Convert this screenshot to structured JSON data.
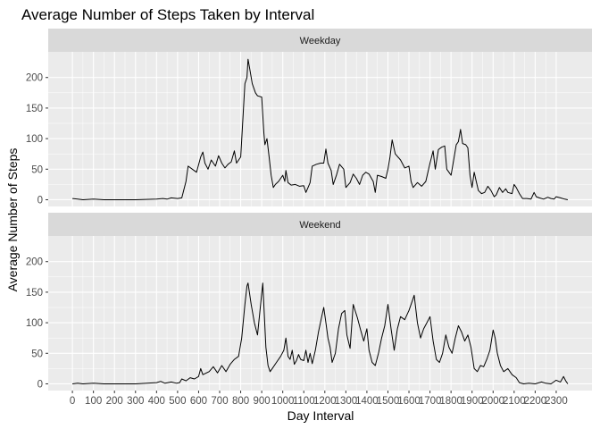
{
  "chart_data": {
    "type": "line",
    "title": "Average Number of Steps Taken by Interval",
    "xlabel": "Day Interval",
    "ylabel": "Average Number of Steps",
    "xlim": [
      -115,
      2470
    ],
    "ylim": [
      -11,
      242
    ],
    "x_ticks": [
      0,
      100,
      200,
      300,
      400,
      500,
      600,
      700,
      800,
      900,
      1000,
      1100,
      1200,
      1300,
      1400,
      1500,
      1600,
      1700,
      1800,
      1900,
      2000,
      2100,
      2200,
      2300
    ],
    "y_ticks": [
      0,
      50,
      100,
      150,
      200
    ],
    "grid": true,
    "facets": [
      {
        "name": "Weekday",
        "points": [
          [
            0,
            2
          ],
          [
            25,
            1
          ],
          [
            50,
            0
          ],
          [
            100,
            1
          ],
          [
            150,
            0
          ],
          [
            200,
            0
          ],
          [
            300,
            0
          ],
          [
            400,
            1
          ],
          [
            430,
            2
          ],
          [
            450,
            1
          ],
          [
            470,
            3
          ],
          [
            500,
            2
          ],
          [
            520,
            3
          ],
          [
            540,
            30
          ],
          [
            550,
            55
          ],
          [
            570,
            50
          ],
          [
            590,
            45
          ],
          [
            610,
            70
          ],
          [
            620,
            78
          ],
          [
            630,
            60
          ],
          [
            645,
            50
          ],
          [
            660,
            65
          ],
          [
            680,
            55
          ],
          [
            695,
            72
          ],
          [
            710,
            60
          ],
          [
            725,
            52
          ],
          [
            740,
            58
          ],
          [
            755,
            62
          ],
          [
            770,
            80
          ],
          [
            780,
            60
          ],
          [
            800,
            70
          ],
          [
            820,
            190
          ],
          [
            830,
            200
          ],
          [
            835,
            230
          ],
          [
            845,
            210
          ],
          [
            855,
            190
          ],
          [
            870,
            175
          ],
          [
            880,
            170
          ],
          [
            900,
            168
          ],
          [
            910,
            110
          ],
          [
            915,
            90
          ],
          [
            925,
            100
          ],
          [
            935,
            70
          ],
          [
            945,
            40
          ],
          [
            955,
            20
          ],
          [
            965,
            25
          ],
          [
            980,
            30
          ],
          [
            1000,
            40
          ],
          [
            1010,
            30
          ],
          [
            1015,
            48
          ],
          [
            1025,
            28
          ],
          [
            1040,
            24
          ],
          [
            1060,
            25
          ],
          [
            1080,
            22
          ],
          [
            1100,
            23
          ],
          [
            1110,
            12
          ],
          [
            1120,
            20
          ],
          [
            1130,
            28
          ],
          [
            1140,
            55
          ],
          [
            1160,
            58
          ],
          [
            1180,
            60
          ],
          [
            1195,
            60
          ],
          [
            1205,
            83
          ],
          [
            1215,
            60
          ],
          [
            1230,
            48
          ],
          [
            1240,
            25
          ],
          [
            1255,
            40
          ],
          [
            1270,
            58
          ],
          [
            1290,
            50
          ],
          [
            1300,
            20
          ],
          [
            1320,
            28
          ],
          [
            1335,
            42
          ],
          [
            1350,
            35
          ],
          [
            1365,
            25
          ],
          [
            1380,
            40
          ],
          [
            1395,
            45
          ],
          [
            1410,
            42
          ],
          [
            1430,
            30
          ],
          [
            1440,
            12
          ],
          [
            1450,
            40
          ],
          [
            1470,
            38
          ],
          [
            1490,
            35
          ],
          [
            1500,
            50
          ],
          [
            1510,
            70
          ],
          [
            1520,
            98
          ],
          [
            1535,
            75
          ],
          [
            1560,
            65
          ],
          [
            1580,
            52
          ],
          [
            1600,
            55
          ],
          [
            1610,
            30
          ],
          [
            1620,
            20
          ],
          [
            1640,
            28
          ],
          [
            1660,
            22
          ],
          [
            1680,
            30
          ],
          [
            1700,
            60
          ],
          [
            1715,
            80
          ],
          [
            1725,
            50
          ],
          [
            1740,
            82
          ],
          [
            1755,
            86
          ],
          [
            1770,
            88
          ],
          [
            1780,
            50
          ],
          [
            1800,
            40
          ],
          [
            1815,
            70
          ],
          [
            1825,
            90
          ],
          [
            1835,
            95
          ],
          [
            1845,
            115
          ],
          [
            1855,
            92
          ],
          [
            1870,
            90
          ],
          [
            1880,
            85
          ],
          [
            1890,
            40
          ],
          [
            1900,
            20
          ],
          [
            1910,
            45
          ],
          [
            1920,
            30
          ],
          [
            1930,
            15
          ],
          [
            1945,
            10
          ],
          [
            1960,
            12
          ],
          [
            1975,
            22
          ],
          [
            1990,
            15
          ],
          [
            2005,
            5
          ],
          [
            2015,
            8
          ],
          [
            2030,
            20
          ],
          [
            2045,
            12
          ],
          [
            2060,
            18
          ],
          [
            2070,
            12
          ],
          [
            2090,
            10
          ],
          [
            2100,
            25
          ],
          [
            2110,
            20
          ],
          [
            2125,
            10
          ],
          [
            2140,
            2
          ],
          [
            2160,
            2
          ],
          [
            2180,
            1
          ],
          [
            2195,
            12
          ],
          [
            2205,
            5
          ],
          [
            2220,
            3
          ],
          [
            2240,
            1
          ],
          [
            2260,
            4
          ],
          [
            2275,
            2
          ],
          [
            2290,
            1
          ],
          [
            2300,
            5
          ],
          [
            2320,
            3
          ],
          [
            2340,
            1
          ],
          [
            2355,
            0
          ]
        ]
      },
      {
        "name": "Weekend",
        "points": [
          [
            0,
            0
          ],
          [
            25,
            1
          ],
          [
            50,
            0
          ],
          [
            100,
            1
          ],
          [
            150,
            0
          ],
          [
            200,
            0
          ],
          [
            300,
            0
          ],
          [
            400,
            2
          ],
          [
            420,
            4
          ],
          [
            440,
            1
          ],
          [
            470,
            3
          ],
          [
            495,
            1
          ],
          [
            510,
            2
          ],
          [
            520,
            8
          ],
          [
            540,
            5
          ],
          [
            560,
            10
          ],
          [
            580,
            8
          ],
          [
            600,
            12
          ],
          [
            610,
            25
          ],
          [
            620,
            15
          ],
          [
            650,
            20
          ],
          [
            670,
            28
          ],
          [
            690,
            18
          ],
          [
            710,
            30
          ],
          [
            730,
            20
          ],
          [
            750,
            32
          ],
          [
            770,
            40
          ],
          [
            790,
            45
          ],
          [
            805,
            75
          ],
          [
            820,
            130
          ],
          [
            830,
            160
          ],
          [
            835,
            165
          ],
          [
            850,
            130
          ],
          [
            865,
            100
          ],
          [
            880,
            80
          ],
          [
            895,
            130
          ],
          [
            905,
            165
          ],
          [
            920,
            60
          ],
          [
            930,
            30
          ],
          [
            940,
            20
          ],
          [
            950,
            25
          ],
          [
            970,
            35
          ],
          [
            990,
            45
          ],
          [
            1005,
            55
          ],
          [
            1015,
            75
          ],
          [
            1025,
            45
          ],
          [
            1035,
            40
          ],
          [
            1045,
            55
          ],
          [
            1055,
            32
          ],
          [
            1065,
            38
          ],
          [
            1075,
            48
          ],
          [
            1085,
            40
          ],
          [
            1100,
            38
          ],
          [
            1110,
            55
          ],
          [
            1120,
            35
          ],
          [
            1130,
            50
          ],
          [
            1140,
            33
          ],
          [
            1155,
            55
          ],
          [
            1170,
            85
          ],
          [
            1185,
            110
          ],
          [
            1195,
            125
          ],
          [
            1205,
            100
          ],
          [
            1215,
            75
          ],
          [
            1225,
            60
          ],
          [
            1235,
            35
          ],
          [
            1250,
            50
          ],
          [
            1265,
            90
          ],
          [
            1280,
            115
          ],
          [
            1295,
            120
          ],
          [
            1305,
            80
          ],
          [
            1320,
            58
          ],
          [
            1335,
            130
          ],
          [
            1355,
            108
          ],
          [
            1370,
            88
          ],
          [
            1385,
            70
          ],
          [
            1400,
            90
          ],
          [
            1410,
            55
          ],
          [
            1425,
            35
          ],
          [
            1440,
            30
          ],
          [
            1455,
            50
          ],
          [
            1470,
            75
          ],
          [
            1485,
            95
          ],
          [
            1500,
            130
          ],
          [
            1515,
            90
          ],
          [
            1530,
            55
          ],
          [
            1545,
            90
          ],
          [
            1560,
            110
          ],
          [
            1580,
            105
          ],
          [
            1600,
            120
          ],
          [
            1615,
            135
          ],
          [
            1625,
            145
          ],
          [
            1640,
            100
          ],
          [
            1655,
            75
          ],
          [
            1670,
            90
          ],
          [
            1685,
            100
          ],
          [
            1700,
            110
          ],
          [
            1715,
            70
          ],
          [
            1730,
            40
          ],
          [
            1745,
            35
          ],
          [
            1760,
            50
          ],
          [
            1775,
            80
          ],
          [
            1790,
            60
          ],
          [
            1805,
            50
          ],
          [
            1820,
            75
          ],
          [
            1835,
            95
          ],
          [
            1850,
            85
          ],
          [
            1865,
            70
          ],
          [
            1880,
            80
          ],
          [
            1895,
            60
          ],
          [
            1910,
            25
          ],
          [
            1925,
            20
          ],
          [
            1940,
            30
          ],
          [
            1955,
            28
          ],
          [
            1970,
            40
          ],
          [
            1985,
            55
          ],
          [
            2000,
            88
          ],
          [
            2010,
            75
          ],
          [
            2020,
            50
          ],
          [
            2035,
            30
          ],
          [
            2050,
            20
          ],
          [
            2070,
            25
          ],
          [
            2090,
            15
          ],
          [
            2110,
            10
          ],
          [
            2125,
            2
          ],
          [
            2145,
            0
          ],
          [
            2170,
            1
          ],
          [
            2200,
            0
          ],
          [
            2230,
            3
          ],
          [
            2250,
            1
          ],
          [
            2275,
            0
          ],
          [
            2300,
            6
          ],
          [
            2320,
            3
          ],
          [
            2335,
            12
          ],
          [
            2345,
            5
          ],
          [
            2355,
            0
          ]
        ]
      }
    ]
  }
}
